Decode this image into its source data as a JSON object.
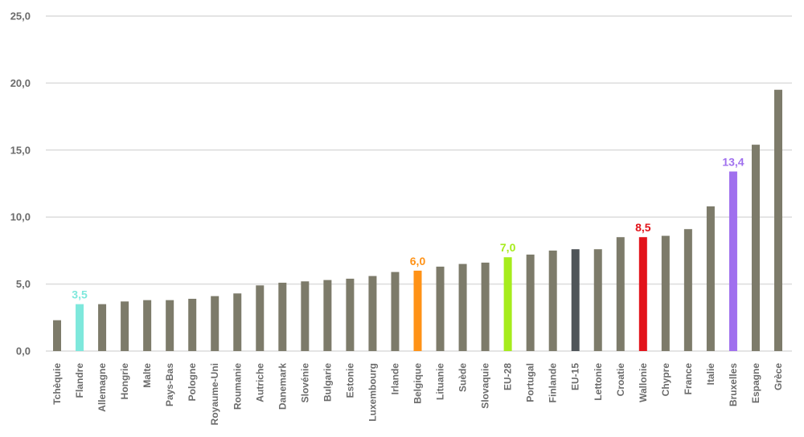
{
  "chart_data": {
    "type": "bar",
    "title": "",
    "xlabel": "",
    "ylabel": "",
    "ylim": [
      0,
      25
    ],
    "yticks": [
      0,
      5,
      10,
      15,
      20,
      25
    ],
    "ytick_labels": [
      "0,0",
      "5,0",
      "10,0",
      "15,0",
      "20,0",
      "25,0"
    ],
    "grid": true,
    "categories": [
      "Tchèquie",
      "Flandre",
      "Allemagne",
      "Hongrie",
      "Malte",
      "Pays-Bas",
      "Pologne",
      "Royaume-Uni",
      "Roumanie",
      "Autriche",
      "Danemark",
      "Slovénie",
      "Bulgarie",
      "Estonie",
      "Luxembourg",
      "Irlande",
      "Belgique",
      "Lituanie",
      "Suède",
      "Slovaquie",
      "EU-28",
      "Portugal",
      "Finlande",
      "EU-15",
      "Lettonie",
      "Croatie",
      "Wallonie",
      "Chypre",
      "France",
      "Italie",
      "Bruxelles",
      "Espagne",
      "Grèce"
    ],
    "values": [
      2.3,
      3.5,
      3.5,
      3.7,
      3.8,
      3.8,
      3.9,
      4.1,
      4.3,
      4.9,
      5.1,
      5.2,
      5.3,
      5.4,
      5.6,
      5.9,
      6.0,
      6.3,
      6.5,
      6.6,
      7.0,
      7.2,
      7.5,
      7.6,
      7.6,
      8.5,
      8.5,
      8.6,
      9.1,
      10.8,
      13.4,
      15.4,
      19.5
    ],
    "default_color": "#7d7b6a",
    "highlights": [
      {
        "category": "Flandre",
        "color": "#7ee8dc",
        "label": "3,5"
      },
      {
        "category": "Belgique",
        "color": "#ff9216",
        "label": "6,0"
      },
      {
        "category": "EU-28",
        "color": "#a6ec1c",
        "label": "7,0"
      },
      {
        "category": "EU-15",
        "color": "#4f5559"
      },
      {
        "category": "Wallonie",
        "color": "#e2131a",
        "label": "8,5"
      },
      {
        "category": "Bruxelles",
        "color": "#a070ee",
        "label": "13,4"
      }
    ]
  }
}
